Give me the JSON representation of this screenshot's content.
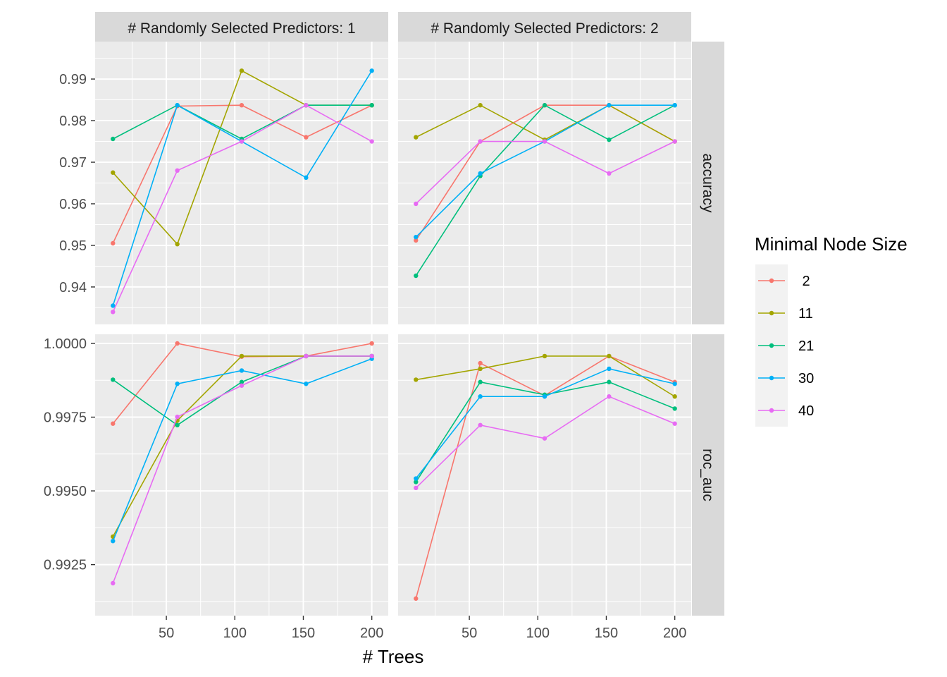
{
  "chart_data": {
    "type": "line",
    "xlabel": "# Trees",
    "x_ticks": [
      50,
      100,
      150,
      200
    ],
    "xlim": [
      -2,
      212
    ],
    "x": [
      11,
      58,
      105,
      152,
      200
    ],
    "facet_cols": [
      "# Randomly Selected Predictors: 1",
      "# Randomly Selected Predictors: 2"
    ],
    "facet_rows": [
      "accuracy",
      "roc_auc"
    ],
    "row_ylim": [
      [
        0.931,
        0.999
      ],
      [
        0.99077,
        1.00031
      ]
    ],
    "row_ticks": [
      [
        "0.94",
        "0.95",
        "0.96",
        "0.97",
        "0.98",
        "0.99"
      ],
      [
        "0.9925",
        "0.9950",
        "0.9975",
        "1.0000"
      ]
    ],
    "legend": {
      "title": "Minimal Node Size",
      "position": "right",
      "entries": [
        " 2",
        "11",
        "21",
        "30",
        "40"
      ]
    },
    "colors": [
      "#F8766D",
      "#A3A500",
      "#00BF7D",
      "#00B0F6",
      "#E76BF3"
    ],
    "grid": true,
    "panels": [
      {
        "row": 0,
        "col": 0,
        "series": [
          {
            "values": [
              0.9505,
              0.9835,
              0.9837,
              0.976,
              0.9837
            ]
          },
          {
            "values": [
              0.9675,
              0.9503,
              0.992,
              0.9837,
              0.9837
            ]
          },
          {
            "values": [
              0.9756,
              0.9837,
              0.9756,
              0.9837,
              0.9837
            ]
          },
          {
            "values": [
              0.9355,
              0.9837,
              0.975,
              0.9663,
              0.992
            ]
          },
          {
            "values": [
              0.934,
              0.968,
              0.975,
              0.9837,
              0.975
            ]
          }
        ]
      },
      {
        "row": 0,
        "col": 1,
        "series": [
          {
            "values": [
              0.9512,
              0.975,
              0.9837,
              0.9837,
              0.975
            ]
          },
          {
            "values": [
              0.976,
              0.9837,
              0.9754,
              0.9837,
              0.975
            ]
          },
          {
            "values": [
              0.9427,
              0.9667,
              0.9837,
              0.9754,
              0.9837
            ]
          },
          {
            "values": [
              0.952,
              0.9673,
              0.975,
              0.9837,
              0.9837
            ]
          },
          {
            "values": [
              0.96,
              0.975,
              0.975,
              0.9673,
              0.975
            ]
          }
        ]
      },
      {
        "row": 1,
        "col": 0,
        "series": [
          {
            "values": [
              0.99728,
              1.0,
              0.99955,
              0.99957,
              1.0
            ]
          },
          {
            "values": [
              0.99345,
              0.99738,
              0.99957,
              0.99957,
              0.99957
            ]
          },
          {
            "values": [
              0.99877,
              0.99723,
              0.99869,
              0.99957,
              0.99957
            ]
          },
          {
            "values": [
              0.9933,
              0.99863,
              0.99908,
              0.99863,
              0.99948
            ]
          },
          {
            "values": [
              0.99187,
              0.99751,
              0.99857,
              0.99957,
              0.99957
            ]
          }
        ]
      },
      {
        "row": 1,
        "col": 1,
        "series": [
          {
            "values": [
              0.99135,
              0.99933,
              0.99823,
              0.99957,
              0.99869
            ]
          },
          {
            "values": [
              0.99877,
              0.99914,
              0.99957,
              0.99957,
              0.9982
            ]
          },
          {
            "values": [
              0.9953,
              0.99869,
              0.99826,
              0.99869,
              0.99779
            ]
          },
          {
            "values": [
              0.99542,
              0.9982,
              0.9982,
              0.99914,
              0.99863
            ]
          },
          {
            "values": [
              0.9951,
              0.99723,
              0.99678,
              0.9982,
              0.99728
            ]
          }
        ]
      }
    ]
  }
}
